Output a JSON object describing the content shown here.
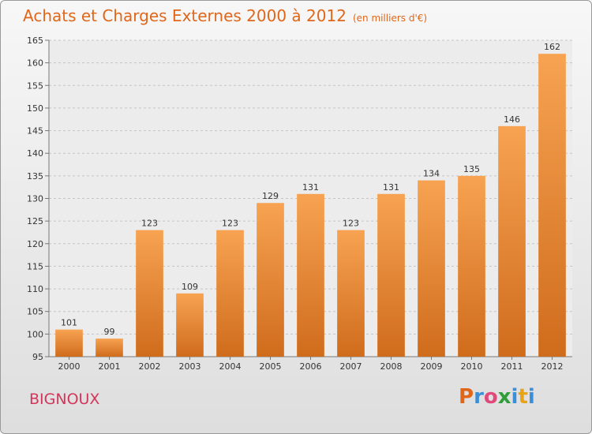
{
  "header": {
    "title": "Achats et Charges Externes 2000 à 2012",
    "unit": "(en milliers d'€)"
  },
  "commune": "BIGNOUX",
  "logo": {
    "letters": [
      "P",
      "r",
      "o",
      "x",
      "i",
      "t",
      "i"
    ],
    "colors": [
      "#e0661a",
      "#3c8ed6",
      "#e04a7a",
      "#2f9e3a",
      "#3c8ed6",
      "#e8a317",
      "#3c8ed6"
    ]
  },
  "colors": {
    "bar_top": "#f7a352",
    "bar_bottom": "#cf6c1c",
    "title": "#e0661a",
    "commune": "#d4355a"
  },
  "chart_data": {
    "type": "bar",
    "title": "Achats et Charges Externes 2000 à 2012",
    "subtitle": "(en milliers d'€)",
    "categories": [
      "2000",
      "2001",
      "2002",
      "2003",
      "2004",
      "2005",
      "2006",
      "2007",
      "2008",
      "2009",
      "2010",
      "2011",
      "2012"
    ],
    "values": [
      101,
      99,
      123,
      109,
      123,
      129,
      131,
      123,
      131,
      134,
      135,
      146,
      162
    ],
    "ylim": [
      95,
      165
    ],
    "yticks": [
      95,
      100,
      105,
      110,
      115,
      120,
      125,
      130,
      135,
      140,
      145,
      150,
      155,
      160,
      165
    ],
    "grid": "horizontal dashed",
    "xlabel": "",
    "ylabel": ""
  }
}
